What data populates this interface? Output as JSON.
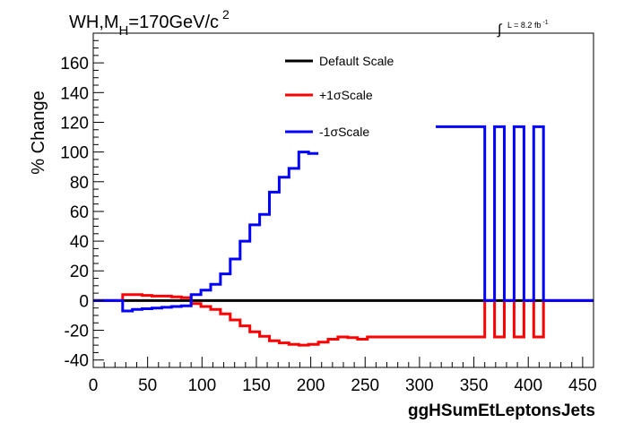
{
  "chart_data": {
    "type": "line",
    "step": true,
    "title": "WH,M",
    "title_sub": "H",
    "title_rest": "=170GeV/c",
    "title_sup": "2",
    "lumi_label": "L = 8.2 fb",
    "lumi_sup": "-1",
    "xlabel": "ggHSumEtLeptonsJets",
    "ylabel": "% Change",
    "xlim": [
      0,
      460
    ],
    "ylim": [
      -45,
      180
    ],
    "xticks": [
      "0",
      "50",
      "100",
      "150",
      "200",
      "250",
      "300",
      "350",
      "400",
      "450"
    ],
    "yticks": [
      "-40",
      "-20",
      "0",
      "20",
      "40",
      "60",
      "80",
      "100",
      "120",
      "140",
      "160"
    ],
    "grid": false,
    "legend_position": "top-center",
    "bin_edges": [
      0,
      27,
      36,
      45,
      54,
      63,
      72,
      81,
      90,
      99,
      108,
      117,
      126,
      135,
      144,
      153,
      162,
      171,
      180,
      189,
      198,
      207,
      216,
      225,
      234,
      243,
      252,
      261,
      270,
      279,
      288,
      297,
      306,
      315,
      324,
      333,
      342,
      351,
      360,
      369,
      378,
      387,
      396,
      405,
      414,
      460
    ],
    "series": [
      {
        "name": "Default Scale",
        "color": "#000000",
        "values": [
          0,
          0,
          0,
          0,
          0,
          0,
          0,
          0,
          0,
          0,
          0,
          0,
          0,
          0,
          0,
          0,
          0,
          0,
          0,
          0,
          0,
          0,
          0,
          0,
          0,
          0,
          0,
          0,
          0,
          0,
          0,
          0,
          0,
          0,
          0,
          0,
          0,
          0,
          0,
          0,
          0,
          0,
          0,
          0,
          0
        ]
      },
      {
        "name": "+1σScale",
        "color": "#ff0000",
        "values": [
          0,
          4,
          4,
          3.5,
          3,
          3,
          2.5,
          2,
          -2,
          -4,
          -6,
          -9,
          -13,
          -17,
          -21,
          -24,
          -27,
          -28.5,
          -29.5,
          -30,
          -29.5,
          -28,
          -26,
          -24.5,
          -25,
          -26,
          -24.5,
          -24.5,
          -24.5,
          -24.5,
          -24.5,
          -24.5,
          -24.5,
          -24.5,
          -24.5,
          -24.5,
          -24.5,
          -24.5,
          0,
          -24.5,
          0,
          -24.5,
          0,
          -24.5,
          0
        ]
      },
      {
        "name": "-1σScale",
        "color": "#0000ff",
        "values": [
          0,
          -7,
          -6,
          -5.5,
          -5,
          -4.5,
          -4,
          -3.5,
          4,
          7,
          11,
          18,
          28,
          40,
          51,
          58,
          73,
          83,
          89,
          100,
          99,
          null,
          null,
          null,
          null,
          null,
          null,
          null,
          null,
          null,
          null,
          null,
          null,
          117,
          117,
          117,
          117,
          117,
          0,
          117,
          0,
          117,
          0,
          117,
          0
        ]
      }
    ]
  }
}
